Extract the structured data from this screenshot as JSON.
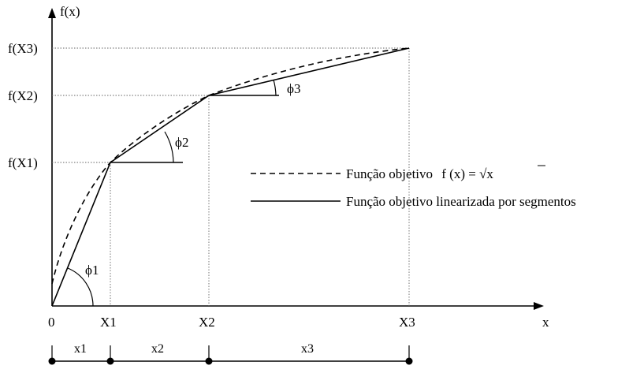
{
  "axes": {
    "y_label": "f(x)",
    "x_label": "x"
  },
  "y_ticks": {
    "fx3": "f(X3)",
    "fx2": "f(X2)",
    "fx1": "f(X1)"
  },
  "x_ticks": {
    "origin": "0",
    "x1": "X1",
    "x2": "X2",
    "x3": "X3"
  },
  "angles": {
    "phi1": "ϕ1",
    "phi2": "ϕ2",
    "phi3": "ϕ3"
  },
  "segments": {
    "s1": "x1",
    "s2": "x2",
    "s3": "x3"
  },
  "legend": {
    "objective_text": "Função objetivo",
    "objective_formula_prefix": "f (x) = ",
    "objective_formula_radical": "√x",
    "linearized_text": "Função objetivo linearizada por segmentos"
  },
  "chart_data": {
    "type": "line",
    "series": [
      {
        "name": "Função objetivo f(x) = √x",
        "style": "dashed"
      },
      {
        "name": "Função objetivo linearizada por segmentos",
        "style": "solid"
      }
    ]
  }
}
